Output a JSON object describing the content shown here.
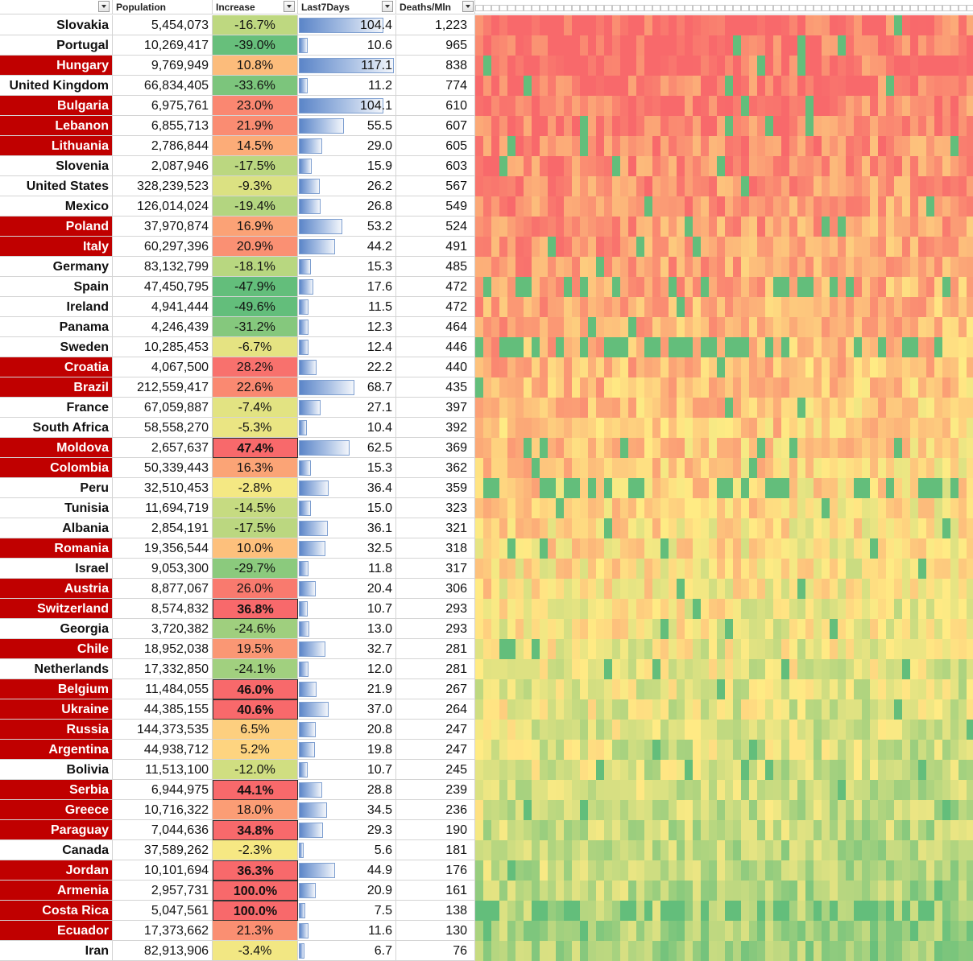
{
  "headers": {
    "population": "Population",
    "increase": "Increase",
    "last7": "Last7Days",
    "deaths": "Deaths/Mln"
  },
  "colors": {
    "country_highlight": "#c00000",
    "heat_low": "#63be7b",
    "heat_mid": "#ffeb84",
    "heat_high": "#f8696b"
  },
  "rows": [
    {
      "country": "Slovakia",
      "highlight": false,
      "population": "5,454,073",
      "increase": "-16.7%",
      "inc_value": -16.7,
      "bold": false,
      "last7": "104.4",
      "last7_value": 104.4,
      "deaths": "1,223"
    },
    {
      "country": "Portugal",
      "highlight": false,
      "population": "10,269,417",
      "increase": "-39.0%",
      "inc_value": -39.0,
      "bold": false,
      "last7": "10.6",
      "last7_value": 10.6,
      "deaths": "965"
    },
    {
      "country": "Hungary",
      "highlight": true,
      "population": "9,769,949",
      "increase": "10.8%",
      "inc_value": 10.8,
      "bold": false,
      "last7": "117.1",
      "last7_value": 117.1,
      "deaths": "838"
    },
    {
      "country": "United Kingdom",
      "highlight": false,
      "population": "66,834,405",
      "increase": "-33.6%",
      "inc_value": -33.6,
      "bold": false,
      "last7": "11.2",
      "last7_value": 11.2,
      "deaths": "774"
    },
    {
      "country": "Bulgaria",
      "highlight": true,
      "population": "6,975,761",
      "increase": "23.0%",
      "inc_value": 23.0,
      "bold": false,
      "last7": "104.1",
      "last7_value": 104.1,
      "deaths": "610"
    },
    {
      "country": "Lebanon",
      "highlight": true,
      "population": "6,855,713",
      "increase": "21.9%",
      "inc_value": 21.9,
      "bold": false,
      "last7": "55.5",
      "last7_value": 55.5,
      "deaths": "607"
    },
    {
      "country": "Lithuania",
      "highlight": true,
      "population": "2,786,844",
      "increase": "14.5%",
      "inc_value": 14.5,
      "bold": false,
      "last7": "29.0",
      "last7_value": 29.0,
      "deaths": "605"
    },
    {
      "country": "Slovenia",
      "highlight": false,
      "population": "2,087,946",
      "increase": "-17.5%",
      "inc_value": -17.5,
      "bold": false,
      "last7": "15.9",
      "last7_value": 15.9,
      "deaths": "603"
    },
    {
      "country": "United States",
      "highlight": false,
      "population": "328,239,523",
      "increase": "-9.3%",
      "inc_value": -9.3,
      "bold": false,
      "last7": "26.2",
      "last7_value": 26.2,
      "deaths": "567"
    },
    {
      "country": "Mexico",
      "highlight": false,
      "population": "126,014,024",
      "increase": "-19.4%",
      "inc_value": -19.4,
      "bold": false,
      "last7": "26.8",
      "last7_value": 26.8,
      "deaths": "549"
    },
    {
      "country": "Poland",
      "highlight": true,
      "population": "37,970,874",
      "increase": "16.9%",
      "inc_value": 16.9,
      "bold": false,
      "last7": "53.2",
      "last7_value": 53.2,
      "deaths": "524"
    },
    {
      "country": "Italy",
      "highlight": true,
      "population": "60,297,396",
      "increase": "20.9%",
      "inc_value": 20.9,
      "bold": false,
      "last7": "44.2",
      "last7_value": 44.2,
      "deaths": "491"
    },
    {
      "country": "Germany",
      "highlight": false,
      "population": "83,132,799",
      "increase": "-18.1%",
      "inc_value": -18.1,
      "bold": false,
      "last7": "15.3",
      "last7_value": 15.3,
      "deaths": "485"
    },
    {
      "country": "Spain",
      "highlight": false,
      "population": "47,450,795",
      "increase": "-47.9%",
      "inc_value": -47.9,
      "bold": false,
      "last7": "17.6",
      "last7_value": 17.6,
      "deaths": "472"
    },
    {
      "country": "Ireland",
      "highlight": false,
      "population": "4,941,444",
      "increase": "-49.6%",
      "inc_value": -49.6,
      "bold": false,
      "last7": "11.5",
      "last7_value": 11.5,
      "deaths": "472"
    },
    {
      "country": "Panama",
      "highlight": false,
      "population": "4,246,439",
      "increase": "-31.2%",
      "inc_value": -31.2,
      "bold": false,
      "last7": "12.3",
      "last7_value": 12.3,
      "deaths": "464"
    },
    {
      "country": "Sweden",
      "highlight": false,
      "population": "10,285,453",
      "increase": "-6.7%",
      "inc_value": -6.7,
      "bold": false,
      "last7": "12.4",
      "last7_value": 12.4,
      "deaths": "446"
    },
    {
      "country": "Croatia",
      "highlight": true,
      "population": "4,067,500",
      "increase": "28.2%",
      "inc_value": 28.2,
      "bold": false,
      "last7": "22.2",
      "last7_value": 22.2,
      "deaths": "440"
    },
    {
      "country": "Brazil",
      "highlight": true,
      "population": "212,559,417",
      "increase": "22.6%",
      "inc_value": 22.6,
      "bold": false,
      "last7": "68.7",
      "last7_value": 68.7,
      "deaths": "435"
    },
    {
      "country": "France",
      "highlight": false,
      "population": "67,059,887",
      "increase": "-7.4%",
      "inc_value": -7.4,
      "bold": false,
      "last7": "27.1",
      "last7_value": 27.1,
      "deaths": "397"
    },
    {
      "country": "South Africa",
      "highlight": false,
      "population": "58,558,270",
      "increase": "-5.3%",
      "inc_value": -5.3,
      "bold": false,
      "last7": "10.4",
      "last7_value": 10.4,
      "deaths": "392"
    },
    {
      "country": "Moldova",
      "highlight": true,
      "population": "2,657,637",
      "increase": "47.4%",
      "inc_value": 47.4,
      "bold": true,
      "last7": "62.5",
      "last7_value": 62.5,
      "deaths": "369"
    },
    {
      "country": "Colombia",
      "highlight": true,
      "population": "50,339,443",
      "increase": "16.3%",
      "inc_value": 16.3,
      "bold": false,
      "last7": "15.3",
      "last7_value": 15.3,
      "deaths": "362"
    },
    {
      "country": "Peru",
      "highlight": false,
      "population": "32,510,453",
      "increase": "-2.8%",
      "inc_value": -2.8,
      "bold": false,
      "last7": "36.4",
      "last7_value": 36.4,
      "deaths": "359"
    },
    {
      "country": "Tunisia",
      "highlight": false,
      "population": "11,694,719",
      "increase": "-14.5%",
      "inc_value": -14.5,
      "bold": false,
      "last7": "15.0",
      "last7_value": 15.0,
      "deaths": "323"
    },
    {
      "country": "Albania",
      "highlight": false,
      "population": "2,854,191",
      "increase": "-17.5%",
      "inc_value": -17.5,
      "bold": false,
      "last7": "36.1",
      "last7_value": 36.1,
      "deaths": "321"
    },
    {
      "country": "Romania",
      "highlight": true,
      "population": "19,356,544",
      "increase": "10.0%",
      "inc_value": 10.0,
      "bold": false,
      "last7": "32.5",
      "last7_value": 32.5,
      "deaths": "318"
    },
    {
      "country": "Israel",
      "highlight": false,
      "population": "9,053,300",
      "increase": "-29.7%",
      "inc_value": -29.7,
      "bold": false,
      "last7": "11.8",
      "last7_value": 11.8,
      "deaths": "317"
    },
    {
      "country": "Austria",
      "highlight": true,
      "population": "8,877,067",
      "increase": "26.0%",
      "inc_value": 26.0,
      "bold": false,
      "last7": "20.4",
      "last7_value": 20.4,
      "deaths": "306"
    },
    {
      "country": "Switzerland",
      "highlight": true,
      "population": "8,574,832",
      "increase": "36.8%",
      "inc_value": 36.8,
      "bold": true,
      "last7": "10.7",
      "last7_value": 10.7,
      "deaths": "293"
    },
    {
      "country": "Georgia",
      "highlight": false,
      "population": "3,720,382",
      "increase": "-24.6%",
      "inc_value": -24.6,
      "bold": false,
      "last7": "13.0",
      "last7_value": 13.0,
      "deaths": "293"
    },
    {
      "country": "Chile",
      "highlight": true,
      "population": "18,952,038",
      "increase": "19.5%",
      "inc_value": 19.5,
      "bold": false,
      "last7": "32.7",
      "last7_value": 32.7,
      "deaths": "281"
    },
    {
      "country": "Netherlands",
      "highlight": false,
      "population": "17,332,850",
      "increase": "-24.1%",
      "inc_value": -24.1,
      "bold": false,
      "last7": "12.0",
      "last7_value": 12.0,
      "deaths": "281"
    },
    {
      "country": "Belgium",
      "highlight": true,
      "population": "11,484,055",
      "increase": "46.0%",
      "inc_value": 46.0,
      "bold": true,
      "last7": "21.9",
      "last7_value": 21.9,
      "deaths": "267"
    },
    {
      "country": "Ukraine",
      "highlight": true,
      "population": "44,385,155",
      "increase": "40.6%",
      "inc_value": 40.6,
      "bold": true,
      "last7": "37.0",
      "last7_value": 37.0,
      "deaths": "264"
    },
    {
      "country": "Russia",
      "highlight": true,
      "population": "144,373,535",
      "increase": "6.5%",
      "inc_value": 6.5,
      "bold": false,
      "last7": "20.8",
      "last7_value": 20.8,
      "deaths": "247"
    },
    {
      "country": "Argentina",
      "highlight": true,
      "population": "44,938,712",
      "increase": "5.2%",
      "inc_value": 5.2,
      "bold": false,
      "last7": "19.8",
      "last7_value": 19.8,
      "deaths": "247"
    },
    {
      "country": "Bolivia",
      "highlight": false,
      "population": "11,513,100",
      "increase": "-12.0%",
      "inc_value": -12.0,
      "bold": false,
      "last7": "10.7",
      "last7_value": 10.7,
      "deaths": "245"
    },
    {
      "country": "Serbia",
      "highlight": true,
      "population": "6,944,975",
      "increase": "44.1%",
      "inc_value": 44.1,
      "bold": true,
      "last7": "28.8",
      "last7_value": 28.8,
      "deaths": "239"
    },
    {
      "country": "Greece",
      "highlight": true,
      "population": "10,716,322",
      "increase": "18.0%",
      "inc_value": 18.0,
      "bold": false,
      "last7": "34.5",
      "last7_value": 34.5,
      "deaths": "236"
    },
    {
      "country": "Paraguay",
      "highlight": true,
      "population": "7,044,636",
      "increase": "34.8%",
      "inc_value": 34.8,
      "bold": true,
      "last7": "29.3",
      "last7_value": 29.3,
      "deaths": "190"
    },
    {
      "country": "Canada",
      "highlight": false,
      "population": "37,589,262",
      "increase": "-2.3%",
      "inc_value": -2.3,
      "bold": false,
      "last7": "5.6",
      "last7_value": 5.6,
      "deaths": "181"
    },
    {
      "country": "Jordan",
      "highlight": true,
      "population": "10,101,694",
      "increase": "36.3%",
      "inc_value": 36.3,
      "bold": true,
      "last7": "44.9",
      "last7_value": 44.9,
      "deaths": "176"
    },
    {
      "country": "Armenia",
      "highlight": true,
      "population": "2,957,731",
      "increase": "100.0%",
      "inc_value": 100.0,
      "bold": true,
      "last7": "20.9",
      "last7_value": 20.9,
      "deaths": "161"
    },
    {
      "country": "Costa Rica",
      "highlight": true,
      "population": "5,047,561",
      "increase": "100.0%",
      "inc_value": 100.0,
      "bold": true,
      "last7": "7.5",
      "last7_value": 7.5,
      "deaths": "138"
    },
    {
      "country": "Ecuador",
      "highlight": true,
      "population": "17,373,662",
      "increase": "21.3%",
      "inc_value": 21.3,
      "bold": false,
      "last7": "11.6",
      "last7_value": 11.6,
      "deaths": "130"
    },
    {
      "country": "Iran",
      "highlight": false,
      "population": "82,913,906",
      "increase": "-3.4%",
      "inc_value": -3.4,
      "bold": false,
      "last7": "6.7",
      "last7_value": 6.7,
      "deaths": "76"
    }
  ]
}
